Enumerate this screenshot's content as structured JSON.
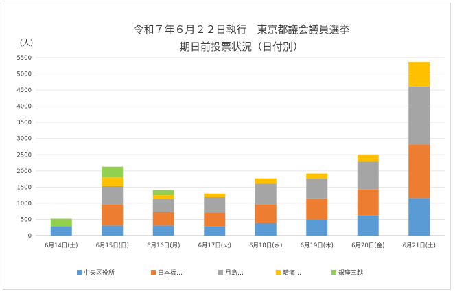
{
  "chart_data": {
    "type": "bar",
    "stacked": true,
    "title_line1": "令和７年６月２２日執行　東京都議会議員選挙",
    "title_line2": "期日前投票状況（日付別）",
    "ylabel": "（人）",
    "ylim": [
      0,
      5500
    ],
    "yticks": [
      0,
      500,
      1000,
      1500,
      2000,
      2500,
      3000,
      3500,
      4000,
      4500,
      5000,
      5500
    ],
    "grid": true,
    "legend_position": "bottom",
    "categories": [
      "6月14日(土)",
      "6月15日(日)",
      "6月16日(月)",
      "6月17日(火)",
      "6月18日(水)",
      "6月19日(木)",
      "6月20日(金)",
      "6月21日(土)"
    ],
    "series": [
      {
        "name": "中央区役所",
        "color": "#5b9bd5",
        "values": [
          290,
          310,
          310,
          290,
          390,
          500,
          620,
          1160
        ]
      },
      {
        "name": "日本橋…",
        "color": "#ed7d31",
        "values": [
          0,
          660,
          420,
          420,
          580,
          650,
          810,
          1660
        ]
      },
      {
        "name": "月島…",
        "color": "#a5a5a5",
        "values": [
          0,
          560,
          400,
          480,
          640,
          610,
          860,
          1790
        ]
      },
      {
        "name": "晴海…",
        "color": "#ffc000",
        "values": [
          0,
          270,
          120,
          110,
          160,
          160,
          220,
          760
        ]
      },
      {
        "name": "銀座三越",
        "color": "#92d050",
        "values": [
          230,
          330,
          160,
          0,
          0,
          0,
          0,
          0
        ]
      }
    ]
  }
}
